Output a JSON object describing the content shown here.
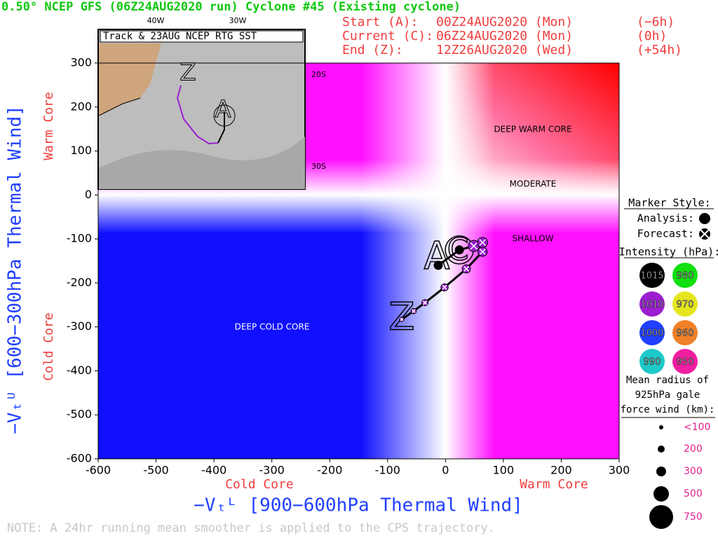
{
  "chart_data": {
    "type": "scatter",
    "title": "0.50° NCEP GFS (06Z24AUG2020 run) Cyclone #45 (Existing cyclone)",
    "run_info": [
      [
        "Start (A):",
        "00Z24AUG2020 (Mon)",
        "(−6h)"
      ],
      [
        "Current (C):",
        "06Z24AUG2020 (Mon)",
        "(0h)"
      ],
      [
        "End (Z):",
        "12Z26AUG2020 (Wed)",
        "(+54h)"
      ]
    ],
    "x_label": "−Vₜᴸ [900−600hPa Thermal Wind]",
    "y_label": "−Vₜᵁ [600−300hPa Thermal Wind]",
    "x_side_labels": [
      "Cold Core",
      "Warm Core"
    ],
    "y_side_labels": [
      "Warm Core",
      "Cold Core"
    ],
    "region_labels": [
      "DEEP WARM CORE",
      "MODERATE",
      "SHALLOW",
      "DEEP COLD CORE"
    ],
    "xlim": [
      -600,
      300
    ],
    "ylim": [
      -600,
      300
    ],
    "xticks": [
      -600,
      -500,
      -400,
      -300,
      -200,
      -100,
      0,
      100,
      200,
      300
    ],
    "yticks": [
      -600,
      -500,
      -400,
      -300,
      -200,
      -100,
      0,
      100,
      200,
      300
    ],
    "track_letters": [
      "A",
      "C",
      "Z"
    ],
    "series": [
      {
        "name": "Analysis:",
        "color": "#000000",
        "x": [
          -12.5,
          24
        ],
        "y": [
          -160,
          -125
        ]
      },
      {
        "name": "Forecast:",
        "color": "#9b1fd0",
        "x": [
          49,
          64,
          64,
          36,
          -1.6,
          -35.5,
          -55,
          -75.5
        ],
        "y": [
          -116,
          -108,
          -129,
          -168,
          -210,
          -245,
          -264,
          -283
        ]
      }
    ],
    "marker_style_title": "Marker Style:",
    "intensity_title": "Intensity (hPa):",
    "intensity_legend": [
      {
        "label": "1015",
        "color": "#000000"
      },
      {
        "label": "980",
        "color": "#10e010"
      },
      {
        "label": "1010",
        "color": "#9b1fd0"
      },
      {
        "label": "970",
        "color": "#e6e61e"
      },
      {
        "label": "1000",
        "color": "#2040ff"
      },
      {
        "label": "960",
        "color": "#f08028"
      },
      {
        "label": "990",
        "color": "#1ec8c8"
      },
      {
        "label": "950",
        "color": "#f01ea0"
      }
    ],
    "radius_title": [
      "Mean radius of",
      "925hPa gale",
      "force wind (km):"
    ],
    "radius_legend": [
      "<100",
      "200",
      "300",
      "500",
      "750"
    ],
    "inset": {
      "title": "Track & 23AUG NCEP RTG SST",
      "lon_labels": [
        "40W",
        "30W"
      ],
      "lat_labels": [
        "20S",
        "30S"
      ]
    },
    "note": "NOTE:  A 24hr running mean smoother is applied to the CPS trajectory."
  }
}
